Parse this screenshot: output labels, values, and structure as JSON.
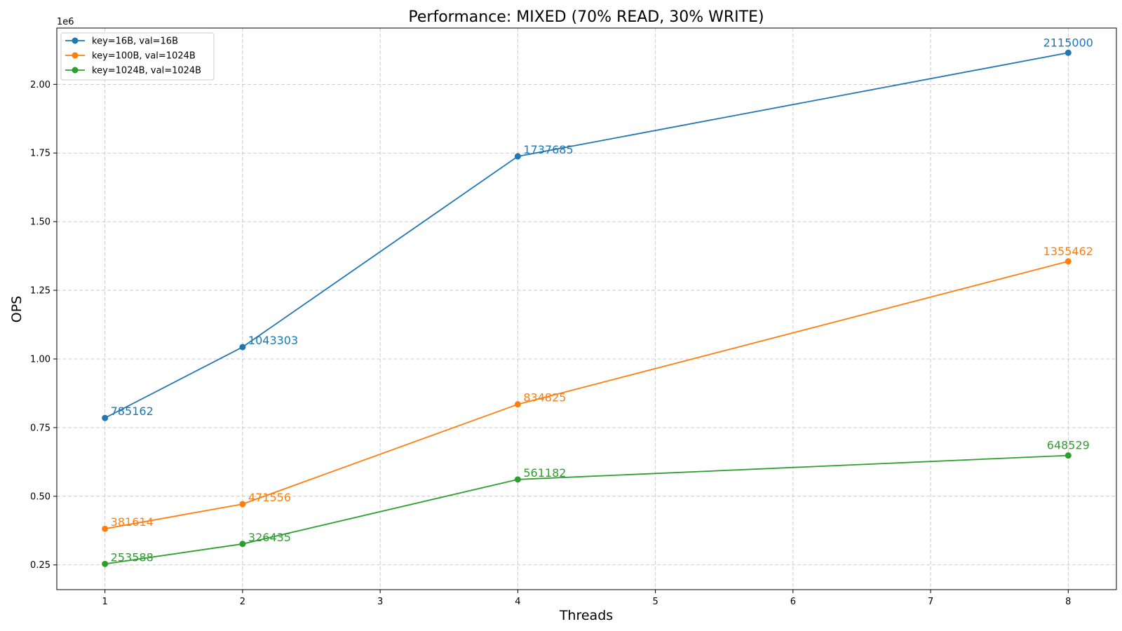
{
  "chart_data": {
    "type": "line",
    "title": "Performance: MIXED (70% READ, 30% WRITE)",
    "xlabel": "Threads",
    "ylabel": "OPS",
    "y_offset_label": "1e6",
    "y_scale": 1000000,
    "xlim": [
      0.65,
      8.35
    ],
    "ylim": [
      160000,
      2205000
    ],
    "x_ticks": [
      1,
      2,
      3,
      4,
      5,
      6,
      7,
      8
    ],
    "y_ticks": [
      250000,
      500000,
      750000,
      1000000,
      1250000,
      1500000,
      1750000,
      2000000
    ],
    "y_tick_labels": [
      "0.25",
      "0.50",
      "0.75",
      "1.00",
      "1.25",
      "1.50",
      "1.75",
      "2.00"
    ],
    "grid": true,
    "legend_position": "top-left",
    "x": [
      1,
      2,
      4,
      8
    ],
    "series": [
      {
        "name": "key=16B, val=16B",
        "color": "#1f77b4",
        "values": [
          785162,
          1043303,
          1737685,
          2115000
        ],
        "labels": [
          "785162",
          "1043303",
          "1737685",
          "2115000"
        ]
      },
      {
        "name": "key=100B, val=1024B",
        "color": "#ff7f0e",
        "values": [
          381614,
          471556,
          834825,
          1355462
        ],
        "labels": [
          "381614",
          "471556",
          "834825",
          "1355462"
        ]
      },
      {
        "name": "key=1024B, val=1024B",
        "color": "#2ca02c",
        "values": [
          253588,
          326435,
          561182,
          648529
        ],
        "labels": [
          "253588",
          "326435",
          "561182",
          "648529"
        ]
      }
    ]
  }
}
